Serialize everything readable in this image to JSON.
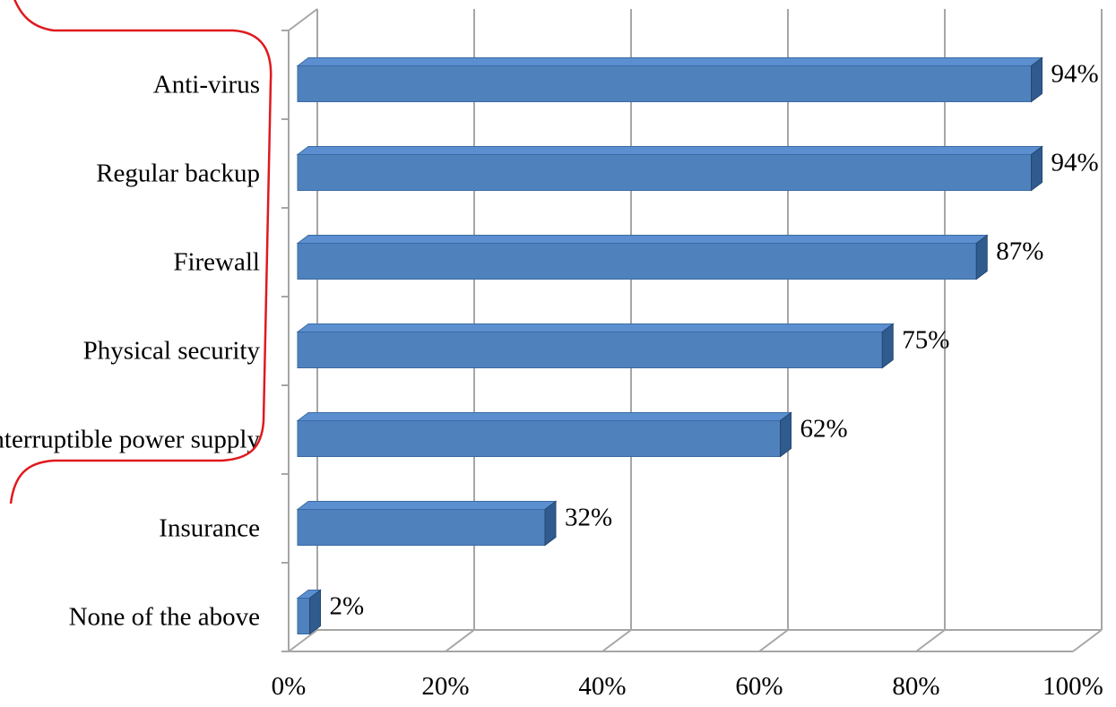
{
  "chart_data": {
    "type": "bar",
    "orientation": "horizontal",
    "style": "3d",
    "categories": [
      "Anti-virus",
      "Regular backup",
      "Firewall",
      "Physical security",
      "Uninterruptible power supply",
      "Insurance",
      "None of the above"
    ],
    "values": [
      94,
      94,
      87,
      75,
      62,
      32,
      2
    ],
    "data_labels": [
      "94%",
      "94%",
      "87%",
      "75%",
      "62%",
      "32%",
      "2%"
    ],
    "x_ticks": [
      "0%",
      "20%",
      "40%",
      "60%",
      "80%",
      "100%"
    ],
    "xlim": [
      0,
      100
    ],
    "unit": "%",
    "grid": true,
    "legend": "none",
    "title": "",
    "xlabel": "",
    "ylabel": "",
    "colors": {
      "bar_front": "#4f81bd",
      "bar_top": "#5b8fd0",
      "bar_side": "#2f5b8f",
      "grid": "#a6a6a6",
      "annotation_bracket": "#e0191e"
    },
    "annotation": "red curly bracket grouping the top five categories"
  }
}
